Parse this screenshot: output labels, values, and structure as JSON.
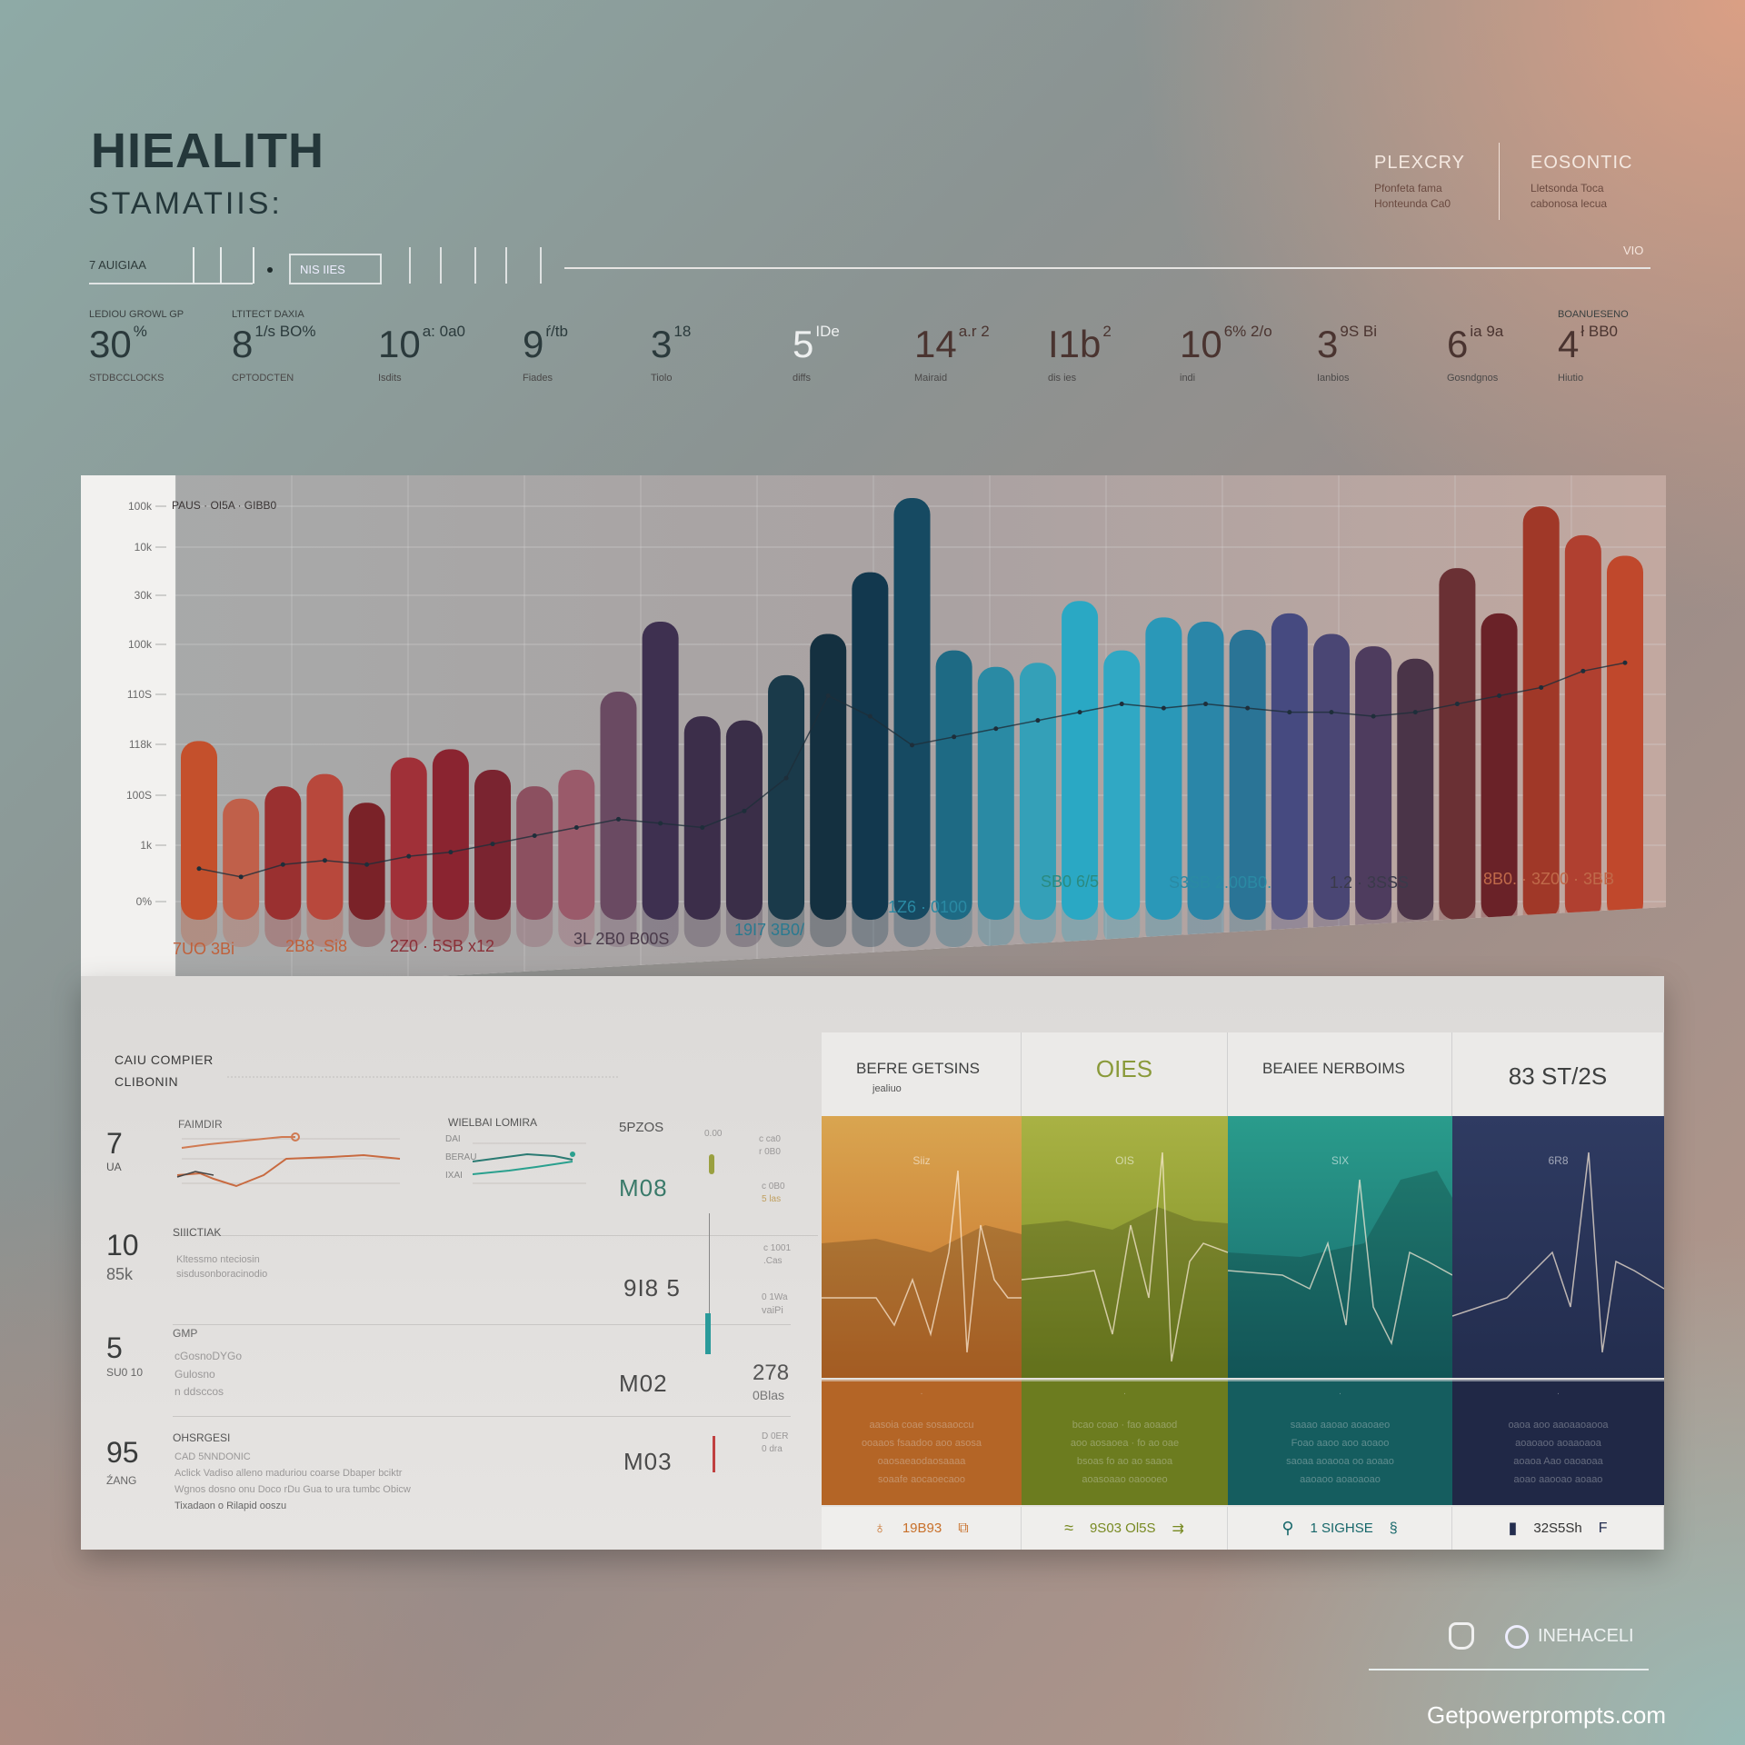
{
  "header": {
    "title": "HIEALITH",
    "subtitle": "STAMATIIS:",
    "right": [
      {
        "title": "PLEXCRY",
        "lines": [
          "Pfonfeta fama",
          "Honteunda Ca0"
        ]
      },
      {
        "title": "EOSONTIC",
        "lines": [
          "Lletsonda Toca",
          "cabonosa lecua"
        ]
      }
    ]
  },
  "toolbar": {
    "tab": "7 AUIGIAA",
    "boxed": "NIS IIES",
    "right_label": "VIO"
  },
  "stats": [
    {
      "top": "LEDIOU GROWL GP",
      "value": "30",
      "suffix": "%",
      "sub": "STDBCCLOCKS"
    },
    {
      "top": "LTITECT DAXIA",
      "value": "8",
      "suffix": "1/s BO%",
      "sub": "CPTODCTEN"
    },
    {
      "top": "",
      "value": "10",
      "suffix": "a: 0a0",
      "sub": "Isdits"
    },
    {
      "top": "",
      "value": "9",
      "suffix": "ŕ/tb",
      "sub": "Fiades"
    },
    {
      "top": "",
      "value": "3",
      "suffix": "18",
      "sub": "Tiolo"
    },
    {
      "top": "",
      "value": "5",
      "suffix": "IDe",
      "sub": "diffs"
    },
    {
      "top": "",
      "value": "14",
      "suffix": "a.r 2",
      "sub": "Mairaid"
    },
    {
      "top": "",
      "value": "I1b",
      "suffix": "2",
      "sub": "dis ies"
    },
    {
      "top": "",
      "value": "10",
      "suffix": "6% 2/o",
      "sub": "indi"
    },
    {
      "top": "",
      "value": "3",
      "suffix": "9S Bi",
      "sub": "Ianbios"
    },
    {
      "top": "",
      "value": "6",
      "suffix": "ia 9a",
      "sub": "Gosndgnos"
    },
    {
      "top": "BOANUESENO",
      "value": "4",
      "suffix": "ł BB0",
      "sub": "Hiutio"
    }
  ],
  "chart_data": {
    "type": "bar",
    "title": "PAUS · OI5A · GIBB0",
    "ylim": [
      0,
      100
    ],
    "grid": true,
    "y_tick_labels": [
      "100k",
      "10k",
      "30k",
      "100k",
      "110S",
      "118k",
      "100S",
      "1k",
      "0%"
    ],
    "x_tick_labels": [
      "7UO 3Bi",
      "2B8 .Si8",
      "2Z0 · 5SB x12",
      "3L 2B0 B00S",
      "19I7 3B0/",
      "1Z6 · 0100",
      "SB0 6/5",
      "S3SB 2.00B0.",
      "1.2 · 3SSS",
      "8B0. · 3Z00 · 3BB"
    ],
    "values": [
      39,
      25,
      28,
      31,
      24,
      35,
      37,
      32,
      28,
      32,
      51,
      68,
      45,
      44,
      55,
      65,
      80,
      98,
      61,
      57,
      58,
      73,
      61,
      69,
      68,
      66,
      70,
      65,
      62,
      59,
      81,
      70,
      96,
      89,
      84
    ],
    "line_values": [
      8,
      6,
      9,
      10,
      9,
      11,
      12,
      14,
      16,
      18,
      20,
      19,
      18,
      22,
      30,
      50,
      45,
      38,
      40,
      42,
      44,
      46,
      48,
      47,
      48,
      47,
      46,
      46,
      45,
      46,
      48,
      50,
      52,
      56,
      58
    ],
    "colors": [
      "#c4502c",
      "#c0604a",
      "#9a3030",
      "#b8483c",
      "#7a2228",
      "#a03038",
      "#8a2430",
      "#7a2430",
      "#8c5060",
      "#9a5a6a",
      "#6a4a62",
      "#3e3050",
      "#3c2e4a",
      "#3a2e48",
      "#1a3a4a",
      "#143040",
      "#12384e",
      "#164a62",
      "#1e6a84",
      "#2a8aa4",
      "#34a0b8",
      "#2aa8c4",
      "#30a8c4",
      "#2a98b8",
      "#2a86a8",
      "#2a7496",
      "#464a80",
      "#4a4674",
      "#4e3c5e",
      "#4a3448",
      "#6a3034",
      "#6a2228",
      "#a03828",
      "#b04030",
      "#c0482c"
    ]
  },
  "bottom": {
    "heading": [
      "CAIU COMPIER",
      "CLIBONIN"
    ],
    "rows": [
      {
        "big": "7",
        "small": "UA",
        "label": "FAIMDIR",
        "value": "M08",
        "value_top": "5PZOS",
        "chart2_label": "WIELBAI LOMIRA",
        "chart2_axis": [
          "DAI",
          "BERAU",
          "IXAI"
        ]
      },
      {
        "big": "10",
        "small": "85k",
        "label": "SIIICTIAK",
        "lines": [
          "Kltessmo nteciosin",
          "sisdusonboracinodio"
        ],
        "value": "9I8 5"
      },
      {
        "big": "5",
        "small": "SU0 10",
        "label": "GMP",
        "lines": [
          "cGosnoDYGo",
          "Gulosno",
          "n ddsccos"
        ],
        "value": "M02"
      },
      {
        "big": "95",
        "small": "ŹANG",
        "label": "OHSRGESI",
        "lines": [
          "CAD 5NNDONIC",
          "Aclick Vadiso alleno maduriou coarse Dbaper bciktr",
          "Wgnos dosno onu Doco rDu Gua to ura tumbc Obicw",
          "Tixadaon o Rilapid ooszu"
        ],
        "value": "M03"
      }
    ],
    "side": [
      "0.00",
      "c ca0",
      "r 0B0",
      "c 0B0",
      "5 las",
      "c 1001",
      ".Cas",
      "0 1Wa",
      "vaiPi",
      "278",
      "0Blas",
      "D 0ER",
      "0 dra"
    ],
    "columns": [
      {
        "title": "BEFRE GETSINS",
        "subtitle": "jealiuo",
        "inner": "Siiz",
        "text": [
          "aasoia coae sosaaoccu",
          "ooaaos fsaadoo aoo asosa",
          "oaosaeaodaosaaaa",
          "soaafe aocaoecaoo"
        ],
        "footer": "19B93",
        "color_top": "#d9a550",
        "color_bottom": "#c8702a"
      },
      {
        "title": "OIES",
        "subtitle": "",
        "inner": "OIS",
        "text": [
          "bcao coao · fao aoaaod",
          "aoo aosaoea · fo ao oae",
          "bsoas fo ao ao saaoa",
          "aoasoaao oaoooeo"
        ],
        "footer": "9S03 Ol5S",
        "color_top": "#a9b244",
        "color_bottom": "#788a22"
      },
      {
        "title": "BEAIEE NERBOIMS",
        "subtitle": "",
        "inner": "SIX",
        "text": [
          "saaao aaoao aoaoaeo",
          "Foao aaoo aoo aoaoo",
          "saoaa aoaooa oo aoaao",
          "aaoaoo aoaoaoao"
        ],
        "footer": "1 SIGHSE",
        "color_top": "#2a9c8c",
        "color_bottom": "#17676a"
      },
      {
        "title": "83 ST/2S",
        "subtitle": "",
        "inner": "6R8",
        "text": [
          "oaoa aoo aaoaaoaooa",
          "aoaoaoo aoaaoaoa",
          "aoaoa Aao oaoaoaa",
          "aoao aaooao aoaao"
        ],
        "footer": "32S5Sh",
        "color_top": "#2f3b62",
        "color_bottom": "#232d4e"
      }
    ]
  },
  "footer": {
    "brand": "INEHACELI",
    "watermark": "Getpowerprompts.com"
  }
}
